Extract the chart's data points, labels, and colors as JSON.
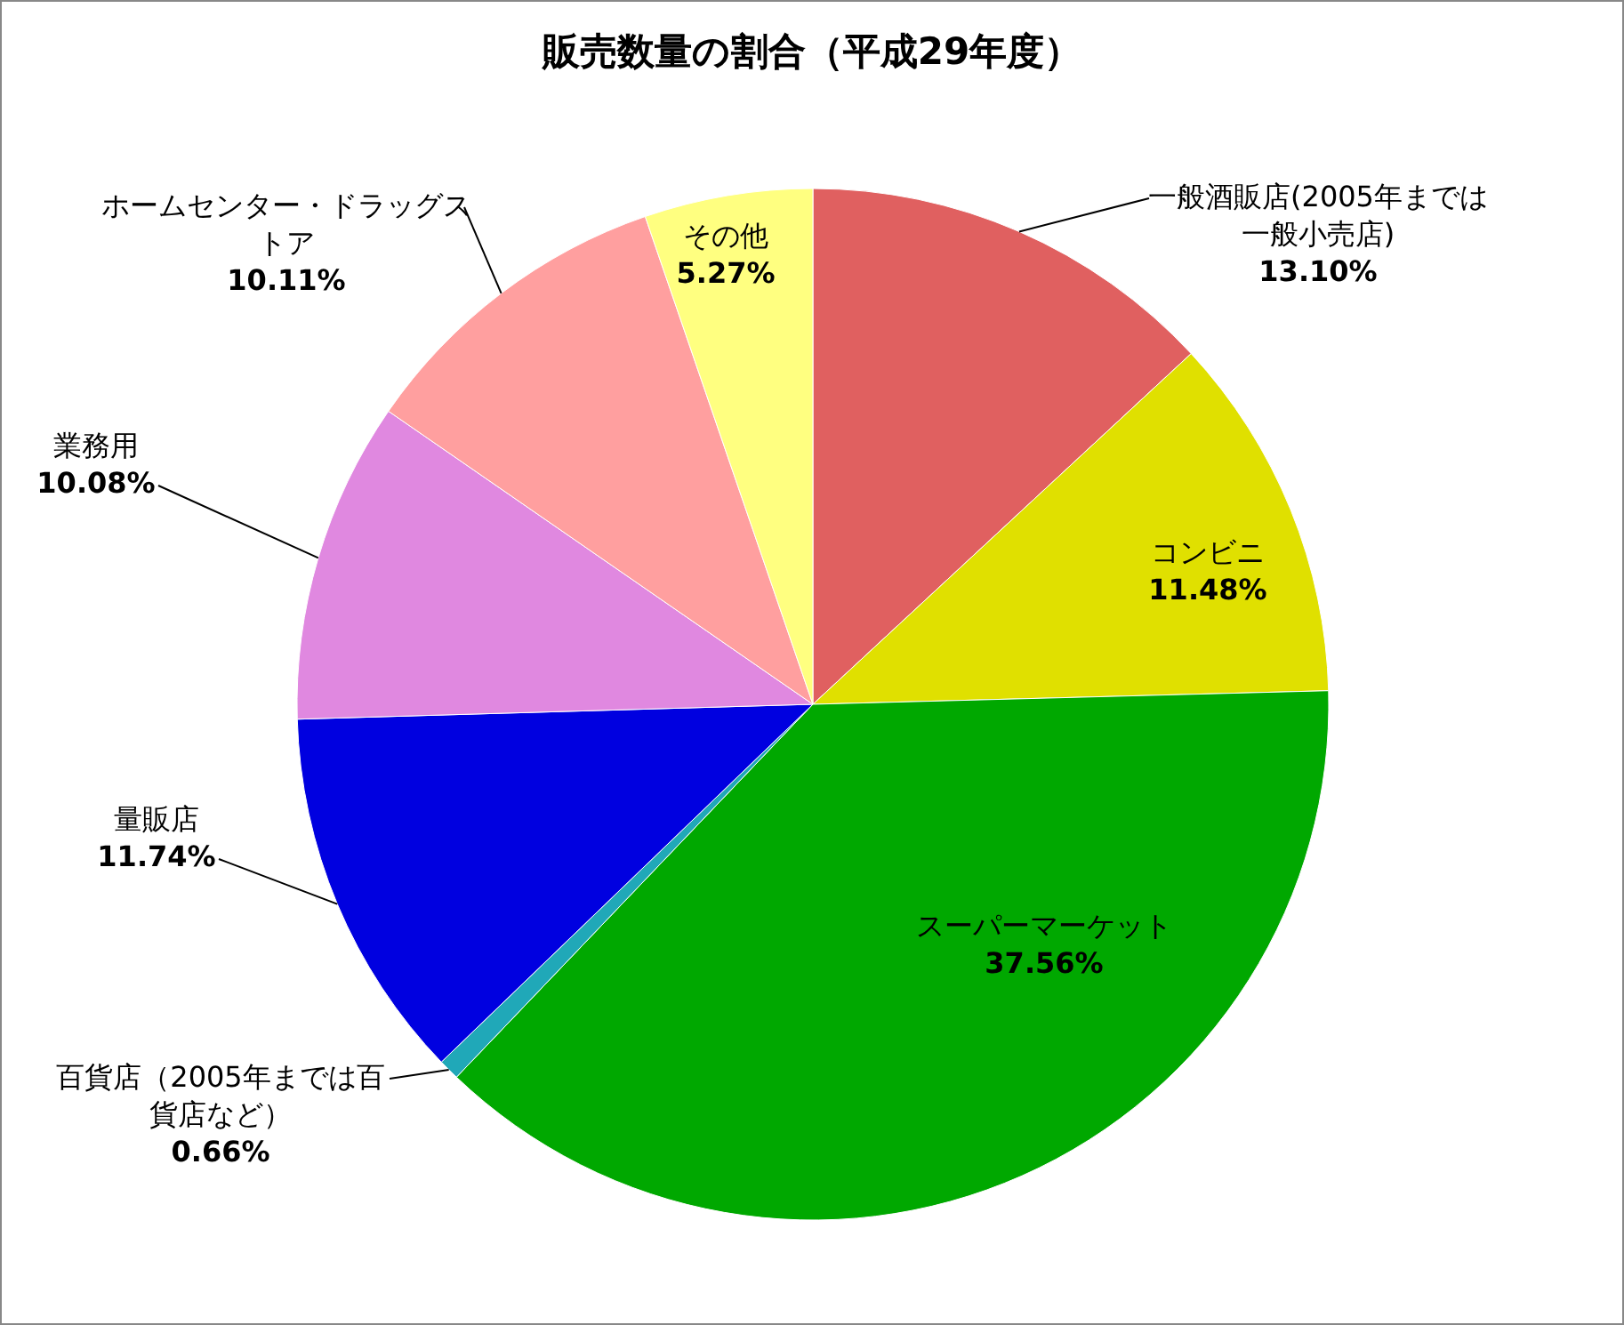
{
  "chart_data": {
    "type": "pie",
    "title": "販売数量の割合（平成29年度）",
    "categories": [
      "一般酒販店(2005年までは一般小売店)",
      "コンビニ",
      "スーパーマーケット",
      "百貨店（2005年までは百貨店など）",
      "量販店",
      "業務用",
      "ホームセンター・ドラッグストア",
      "その他"
    ],
    "values": [
      13.1,
      11.48,
      37.56,
      0.66,
      11.74,
      10.08,
      10.11,
      5.27
    ],
    "value_labels": [
      "13.10%",
      "11.48%",
      "37.56%",
      "0.66%",
      "11.74%",
      "10.08%",
      "10.11%",
      "5.27%"
    ],
    "colors": [
      "#e06060",
      "#e0e000",
      "#00a800",
      "#20a8b8",
      "#0000e0",
      "#e088e0",
      "#ff9f9f",
      "#ffff80"
    ]
  }
}
